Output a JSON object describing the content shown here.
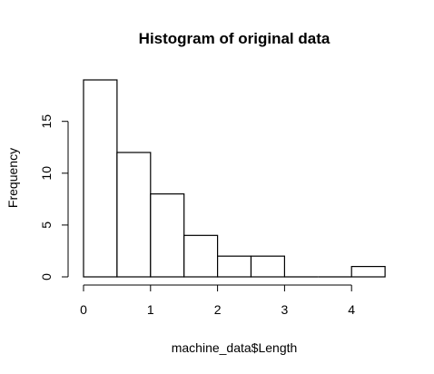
{
  "chart_data": {
    "type": "bar",
    "title": "Histogram of original data",
    "xlabel": "machine_data$Length",
    "ylabel": "Frequency",
    "bins": [
      {
        "from": 0.0,
        "to": 0.5,
        "count": 19
      },
      {
        "from": 0.5,
        "to": 1.0,
        "count": 12
      },
      {
        "from": 1.0,
        "to": 1.5,
        "count": 8
      },
      {
        "from": 1.5,
        "to": 2.0,
        "count": 4
      },
      {
        "from": 2.0,
        "to": 2.5,
        "count": 2
      },
      {
        "from": 2.5,
        "to": 3.0,
        "count": 2
      },
      {
        "from": 3.0,
        "to": 3.5,
        "count": 0
      },
      {
        "from": 3.5,
        "to": 4.0,
        "count": 0
      },
      {
        "from": 4.0,
        "to": 4.5,
        "count": 1
      }
    ],
    "xlim": [
      0,
      4.5
    ],
    "ylim": [
      0,
      19
    ],
    "x_ticks": [
      0,
      1,
      2,
      3,
      4
    ],
    "y_ticks": [
      0,
      5,
      10,
      15
    ],
    "grid": false,
    "bar_fill": "#ffffff",
    "bar_stroke": "#000000"
  }
}
